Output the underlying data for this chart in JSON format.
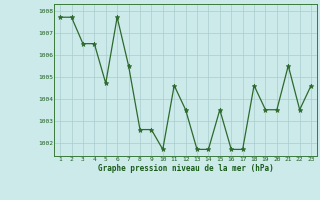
{
  "x": [
    1,
    2,
    3,
    4,
    5,
    6,
    7,
    8,
    9,
    10,
    11,
    12,
    13,
    14,
    15,
    16,
    17,
    18,
    19,
    20,
    21,
    22,
    23
  ],
  "y": [
    1007.7,
    1007.7,
    1006.5,
    1006.5,
    1004.7,
    1007.7,
    1005.5,
    1002.6,
    1002.6,
    1001.7,
    1004.6,
    1003.5,
    1001.7,
    1001.7,
    1003.5,
    1001.7,
    1001.7,
    1004.6,
    1003.5,
    1003.5,
    1005.5,
    1003.5,
    1004.6
  ],
  "line_color": "#2d6a2d",
  "marker": "*",
  "markersize": 3.5,
  "bg_color": "#cceaea",
  "grid_color": "#aacccc",
  "xlabel": "Graphe pression niveau de la mer (hPa)",
  "xlabel_color": "#1a5c1a",
  "tick_color": "#1a5c1a",
  "ylim": [
    1001.4,
    1008.3
  ],
  "yticks": [
    1002,
    1003,
    1004,
    1005,
    1006,
    1007,
    1008
  ],
  "xticks": [
    1,
    2,
    3,
    4,
    5,
    6,
    7,
    8,
    9,
    10,
    11,
    12,
    13,
    14,
    15,
    16,
    17,
    18,
    19,
    20,
    21,
    22,
    23
  ],
  "spine_color": "#3a7a3a",
  "linewidth": 0.9
}
